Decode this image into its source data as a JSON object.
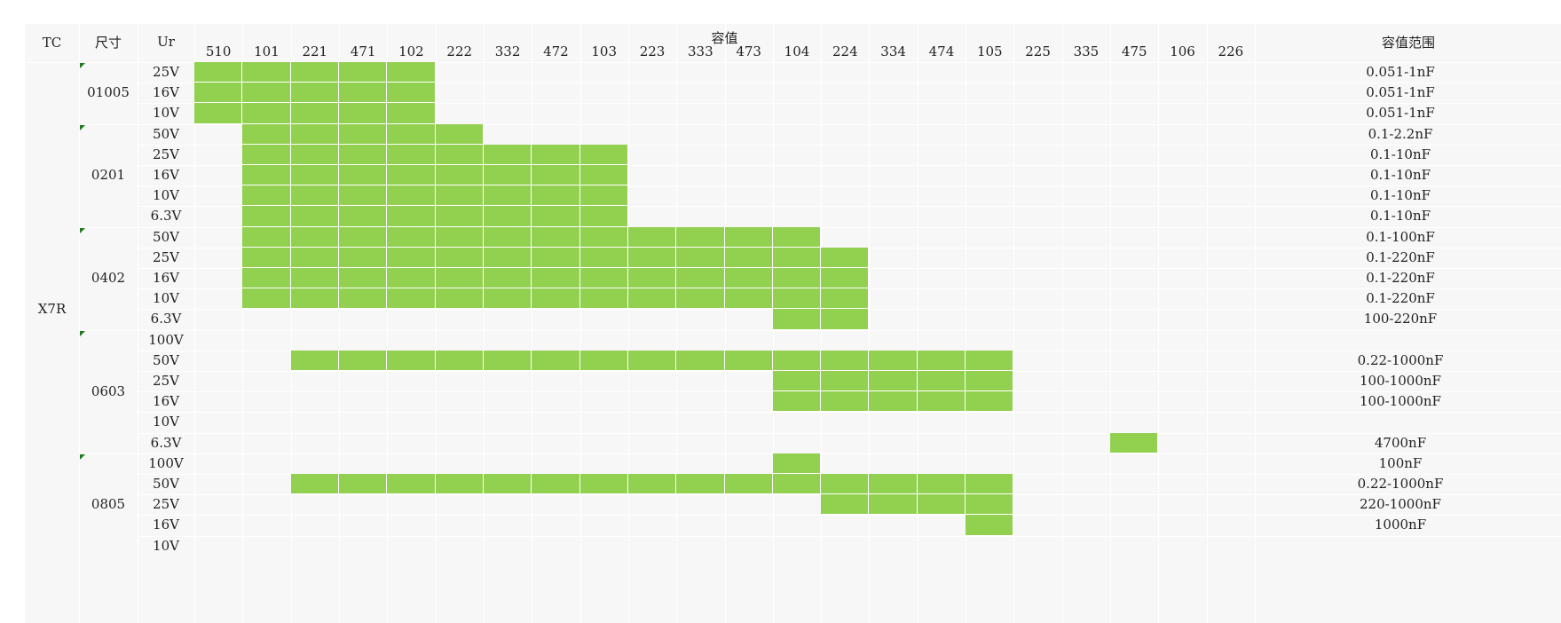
{
  "headers": {
    "tc": "TC",
    "size": "尺寸",
    "ur": "Ur",
    "capacitance": "容值",
    "range": "容值范围"
  },
  "cap_codes": [
    "510",
    "101",
    "221",
    "471",
    "102",
    "222",
    "332",
    "472",
    "103",
    "223",
    "333",
    "473",
    "104",
    "224",
    "334",
    "474",
    "105",
    "225",
    "335",
    "475",
    "106",
    "226"
  ],
  "tc_value": "X7R",
  "groups": [
    {
      "size": "01005",
      "rows": [
        {
          "ur": "25V",
          "range": "0.051-1nF",
          "filled": [
            "510",
            "101",
            "221",
            "471",
            "102"
          ]
        },
        {
          "ur": "16V",
          "range": "0.051-1nF",
          "filled": [
            "510",
            "101",
            "221",
            "471",
            "102"
          ]
        },
        {
          "ur": "10V",
          "range": "0.051-1nF",
          "filled": [
            "510",
            "101",
            "221",
            "471",
            "102"
          ]
        }
      ]
    },
    {
      "size": "0201",
      "rows": [
        {
          "ur": "50V",
          "range": "0.1-2.2nF",
          "filled": [
            "101",
            "221",
            "471",
            "102",
            "222"
          ]
        },
        {
          "ur": "25V",
          "range": "0.1-10nF",
          "filled": [
            "101",
            "221",
            "471",
            "102",
            "222",
            "332",
            "472",
            "103"
          ]
        },
        {
          "ur": "16V",
          "range": "0.1-10nF",
          "filled": [
            "101",
            "221",
            "471",
            "102",
            "222",
            "332",
            "472",
            "103"
          ]
        },
        {
          "ur": "10V",
          "range": "0.1-10nF",
          "filled": [
            "101",
            "221",
            "471",
            "102",
            "222",
            "332",
            "472",
            "103"
          ]
        },
        {
          "ur": "6.3V",
          "range": "0.1-10nF",
          "filled": [
            "101",
            "221",
            "471",
            "102",
            "222",
            "332",
            "472",
            "103"
          ]
        }
      ]
    },
    {
      "size": "0402",
      "rows": [
        {
          "ur": "50V",
          "range": "0.1-100nF",
          "filled": [
            "101",
            "221",
            "471",
            "102",
            "222",
            "332",
            "472",
            "103",
            "223",
            "333",
            "473",
            "104"
          ]
        },
        {
          "ur": "25V",
          "range": "0.1-220nF",
          "filled": [
            "101",
            "221",
            "471",
            "102",
            "222",
            "332",
            "472",
            "103",
            "223",
            "333",
            "473",
            "104",
            "224"
          ]
        },
        {
          "ur": "16V",
          "range": "0.1-220nF",
          "filled": [
            "101",
            "221",
            "471",
            "102",
            "222",
            "332",
            "472",
            "103",
            "223",
            "333",
            "473",
            "104",
            "224"
          ]
        },
        {
          "ur": "10V",
          "range": "0.1-220nF",
          "filled": [
            "101",
            "221",
            "471",
            "102",
            "222",
            "332",
            "472",
            "103",
            "223",
            "333",
            "473",
            "104",
            "224"
          ]
        },
        {
          "ur": "6.3V",
          "range": "100-220nF",
          "filled": [
            "104",
            "224"
          ]
        }
      ]
    },
    {
      "size": "0603",
      "rows": [
        {
          "ur": "100V",
          "range": "",
          "filled": []
        },
        {
          "ur": "50V",
          "range": "0.22-1000nF",
          "filled": [
            "221",
            "471",
            "102",
            "222",
            "332",
            "472",
            "103",
            "223",
            "333",
            "473",
            "104",
            "224",
            "334",
            "474",
            "105"
          ]
        },
        {
          "ur": "25V",
          "range": "100-1000nF",
          "filled": [
            "104",
            "224",
            "334",
            "474",
            "105"
          ]
        },
        {
          "ur": "16V",
          "range": "100-1000nF",
          "filled": [
            "104",
            "224",
            "334",
            "474",
            "105"
          ]
        },
        {
          "ur": "10V",
          "range": "",
          "filled": []
        },
        {
          "ur": "6.3V",
          "range": "4700nF",
          "filled": [
            "475"
          ]
        }
      ]
    },
    {
      "size": "0805",
      "rows": [
        {
          "ur": "100V",
          "range": "100nF",
          "filled": [
            "104"
          ]
        },
        {
          "ur": "50V",
          "range": "0.22-1000nF",
          "filled": [
            "221",
            "471",
            "102",
            "222",
            "332",
            "472",
            "103",
            "223",
            "333",
            "473",
            "104",
            "224",
            "334",
            "474",
            "105"
          ]
        },
        {
          "ur": "25V",
          "range": "220-1000nF",
          "filled": [
            "224",
            "334",
            "474",
            "105"
          ]
        },
        {
          "ur": "16V",
          "range": "1000nF",
          "filled": [
            "105"
          ]
        },
        {
          "ur": "10V",
          "range": "",
          "filled": []
        }
      ]
    }
  ]
}
